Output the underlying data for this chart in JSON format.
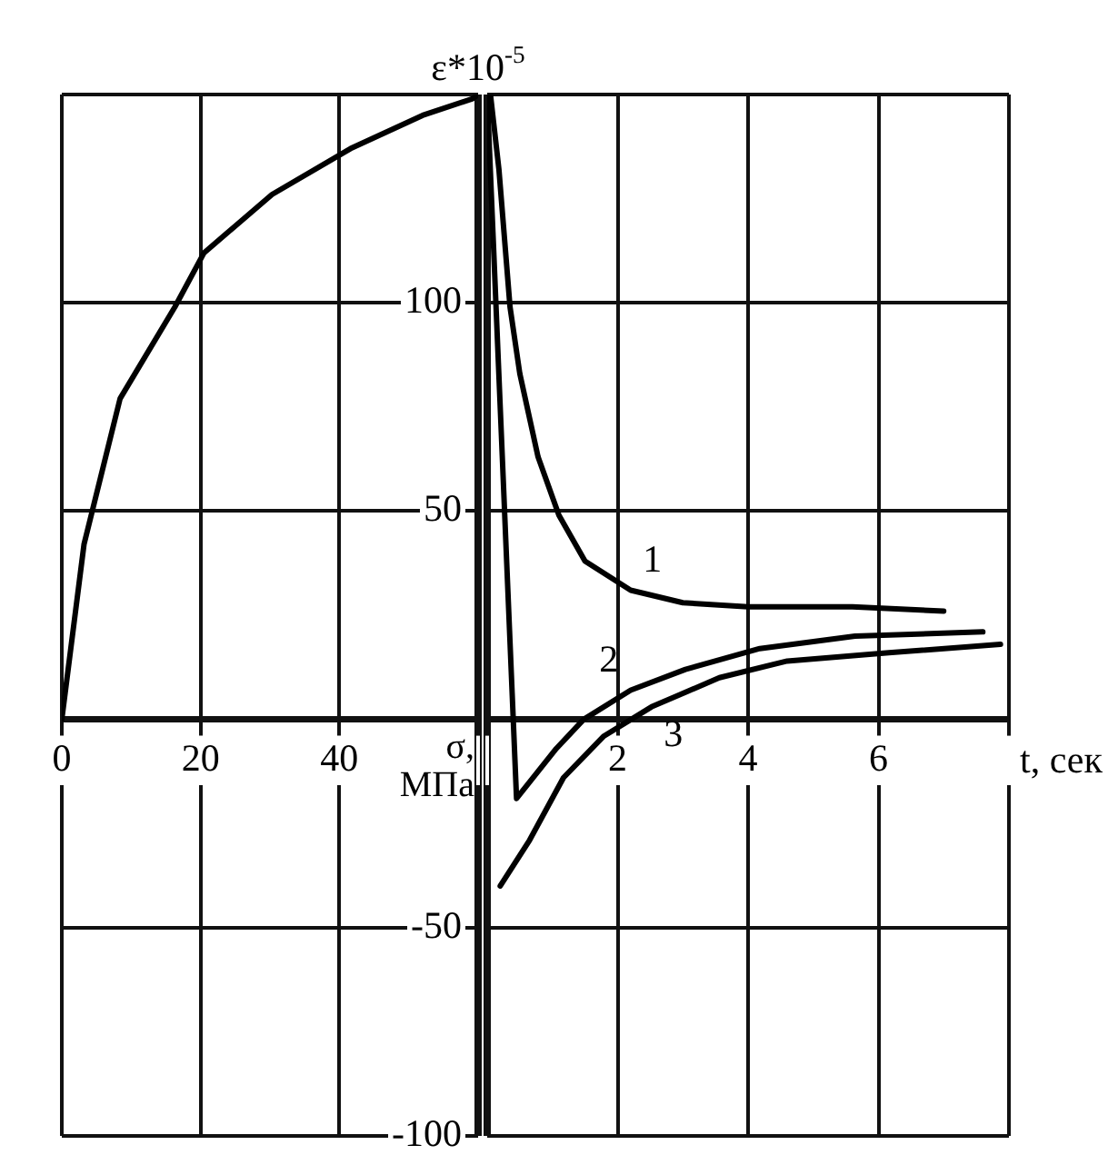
{
  "chart_data": [
    {
      "type": "line",
      "ylabel": "ε*10$^{-5}$",
      "y2label": "σ, МПа",
      "xlim": [
        0,
        60
      ],
      "xticks": [
        0,
        20,
        40,
        {
          "value": 60,
          "label": null
        }
      ],
      "ylim": [
        -100,
        150
      ],
      "yticks": [
        -100,
        -50,
        {
          "value": 0,
          "label": null
        },
        50,
        100,
        {
          "value": 150,
          "label": null
        }
      ],
      "grid": true,
      "series": [
        {
          "color": "#000000",
          "x": [
            0,
            3.2,
            8.4,
            16.3,
            20.5,
            30.3,
            41.6,
            52,
            59.2,
            60
          ],
          "values": [
            0,
            42,
            77,
            99,
            112,
            126,
            137,
            145,
            149,
            150
          ]
        }
      ]
    },
    {
      "type": "line",
      "xlabel": "t, сек",
      "xlim": [
        0,
        8
      ],
      "xticks": [
        {
          "value": 0,
          "label": null
        },
        2,
        4,
        6,
        {
          "value": 8,
          "label": null
        }
      ],
      "ylim": [
        -100,
        150
      ],
      "yticks": [
        -100,
        -50,
        0,
        50,
        100,
        150
      ],
      "grid": true,
      "tick_labels": "x",
      "series": [
        {
          "name": "1",
          "color": "#000000",
          "x": [
            0.05,
            0.18,
            0.35,
            0.5,
            0.78,
            1.1,
            1.5,
            2.2,
            3.0,
            4.0,
            5.6,
            7.0
          ],
          "values": [
            150,
            132,
            99,
            83,
            63,
            49,
            38,
            31,
            28,
            27,
            27,
            26
          ]
        },
        {
          "name": "2",
          "color": "#000000",
          "x": [
            0,
            0.45,
            1.06,
            1.48,
            2.2,
            3.04,
            4.18,
            5.64,
            7.6
          ],
          "values": [
            150,
            -19,
            -7,
            0,
            7,
            12,
            17,
            20,
            21
          ]
        },
        {
          "name": "3",
          "color": "#000000",
          "x": [
            0.2,
            0.65,
            1.17,
            1.79,
            2.52,
            3.56,
            4.6,
            6.16,
            7.87
          ],
          "values": [
            -40,
            -29,
            -14,
            -4,
            3,
            10,
            14,
            16,
            18
          ]
        }
      ]
    }
  ]
}
